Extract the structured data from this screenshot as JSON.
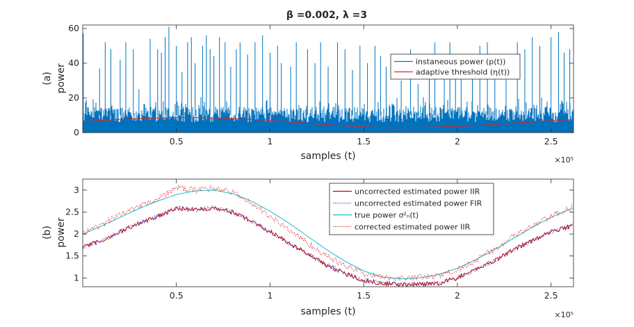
{
  "figure": {
    "title": "β =0.002, λ =3"
  },
  "chart_data": [
    {
      "panel": "(a)",
      "type": "line",
      "xlabel": "samples (t)",
      "ylabel": "power",
      "panel_label": "(a)",
      "x_exponent_label": "×10⁵",
      "xlim": [
        0,
        2.62
      ],
      "ylim": [
        0,
        62
      ],
      "x_unit_note": "x values in units of 10^5 samples",
      "xticks": [
        0.5,
        1,
        1.5,
        2,
        2.5
      ],
      "xtick_labels": [
        "0.5",
        "1",
        "1.5",
        "2",
        "2.5"
      ],
      "yticks": [
        0,
        20,
        40,
        60
      ],
      "ytick_labels": [
        "0",
        "20",
        "40",
        "60"
      ],
      "legend_position": "top-right",
      "series": [
        {
          "name": "instaneous power (p(t))",
          "color": "#0072BD",
          "style": "solid",
          "kind": "noise-with-spikes",
          "spike_x": [
            0.003,
            0.09,
            0.12,
            0.15,
            0.2,
            0.23,
            0.27,
            0.3,
            0.36,
            0.4,
            0.42,
            0.44,
            0.46,
            0.5,
            0.53,
            0.56,
            0.58,
            0.6,
            0.64,
            0.66,
            0.68,
            0.7,
            0.73,
            0.76,
            0.79,
            0.82,
            0.84,
            0.88,
            0.92,
            0.96,
            1.0,
            1.04,
            1.06,
            1.11,
            1.14,
            1.2,
            1.24,
            1.27,
            1.31,
            1.36,
            1.4,
            1.44,
            1.48,
            1.52,
            1.56,
            1.59,
            1.62,
            1.7,
            1.75,
            1.79,
            1.85,
            1.88,
            1.93,
            1.96,
            1.99,
            2.02,
            2.08,
            2.12,
            2.16,
            2.2,
            2.26,
            2.32,
            2.36,
            2.4,
            2.44,
            2.5,
            2.54,
            2.57,
            2.6
          ],
          "spike_y": [
            57,
            37,
            52,
            48,
            42,
            52,
            48,
            25,
            54,
            48,
            46,
            55,
            61,
            50,
            35,
            52,
            55,
            40,
            50,
            56,
            48,
            44,
            55,
            52,
            38,
            48,
            52,
            45,
            52,
            56,
            46,
            50,
            40,
            38,
            52,
            48,
            40,
            52,
            38,
            52,
            48,
            36,
            50,
            40,
            50,
            44,
            38,
            30,
            48,
            28,
            42,
            52,
            44,
            52,
            38,
            40,
            45,
            50,
            52,
            44,
            38,
            52,
            48,
            55,
            50,
            55,
            58,
            46,
            48
          ]
        },
        {
          "name": "adaptive threshold (η(t))",
          "color": "#D62728",
          "style": "solid",
          "x": [
            0,
            0.1,
            0.2,
            0.3,
            0.4,
            0.5,
            0.6,
            0.7,
            0.8,
            0.9,
            1.0,
            1.1,
            1.2,
            1.3,
            1.4,
            1.5,
            1.6,
            1.7,
            1.8,
            1.9,
            2.0,
            2.1,
            2.2,
            2.3,
            2.4,
            2.5,
            2.62
          ],
          "y": [
            6.3,
            7.0,
            7.6,
            8.1,
            8.4,
            8.6,
            8.6,
            8.5,
            8.1,
            7.6,
            7.0,
            6.2,
            5.4,
            4.6,
            3.9,
            3.3,
            3.0,
            2.9,
            3.0,
            3.2,
            3.6,
            4.1,
            4.7,
            5.4,
            6.1,
            6.8,
            7.6
          ]
        }
      ]
    },
    {
      "panel": "(b)",
      "type": "line",
      "xlabel": "samples (t)",
      "ylabel": "power",
      "panel_label": "(b)",
      "x_exponent_label": "×10⁵",
      "xlim": [
        0,
        2.62
      ],
      "ylim": [
        0.8,
        3.25
      ],
      "x_unit_note": "x values in units of 10^5 samples",
      "xticks": [
        0.5,
        1,
        1.5,
        2,
        2.5
      ],
      "xtick_labels": [
        "0.5",
        "1",
        "1.5",
        "2",
        "2.5"
      ],
      "yticks": [
        1,
        1.5,
        2,
        2.5,
        3
      ],
      "ytick_labels": [
        "1",
        "1.5",
        "2",
        "2.5",
        "3"
      ],
      "legend_position": "top-right",
      "x": [
        0,
        0.1,
        0.2,
        0.3,
        0.4,
        0.5,
        0.6,
        0.7,
        0.8,
        0.9,
        1.0,
        1.1,
        1.2,
        1.3,
        1.4,
        1.5,
        1.6,
        1.7,
        1.8,
        1.9,
        2.0,
        2.1,
        2.2,
        2.3,
        2.4,
        2.5,
        2.62
      ],
      "series": [
        {
          "name": "uncorrected estimated power IIR",
          "color": "#C00000",
          "style": "solid",
          "y": [
            1.7,
            1.85,
            2.05,
            2.25,
            2.4,
            2.6,
            2.55,
            2.6,
            2.5,
            2.3,
            2.05,
            1.8,
            1.55,
            1.3,
            1.1,
            0.95,
            0.88,
            0.85,
            0.85,
            0.88,
            1.0,
            1.2,
            1.4,
            1.65,
            1.85,
            2.05,
            2.2
          ]
        },
        {
          "name": "uncorrected estimated power FIR",
          "color": "#3A3AD0",
          "style": "dotted",
          "y": [
            1.7,
            1.85,
            2.05,
            2.25,
            2.4,
            2.6,
            2.55,
            2.6,
            2.5,
            2.3,
            2.05,
            1.8,
            1.55,
            1.3,
            1.1,
            0.95,
            0.88,
            0.85,
            0.85,
            0.88,
            1.0,
            1.2,
            1.4,
            1.65,
            1.85,
            2.05,
            2.2
          ]
        },
        {
          "name": "true power σ²ₙ(t)",
          "color": "#17BECF",
          "style": "solid",
          "y": [
            2.0,
            2.18,
            2.38,
            2.58,
            2.75,
            2.9,
            2.98,
            3.0,
            2.92,
            2.75,
            2.52,
            2.25,
            1.95,
            1.65,
            1.38,
            1.16,
            1.02,
            0.98,
            1.0,
            1.08,
            1.22,
            1.42,
            1.65,
            1.9,
            2.15,
            2.38,
            2.6
          ]
        },
        {
          "name": "corrected estimated power IIR",
          "color": "#E8202A",
          "style": "dotted",
          "y": [
            2.0,
            2.2,
            2.45,
            2.65,
            2.8,
            3.05,
            3.0,
            3.05,
            2.95,
            2.7,
            2.4,
            2.1,
            1.8,
            1.5,
            1.28,
            1.1,
            1.0,
            1.0,
            1.02,
            1.04,
            1.18,
            1.42,
            1.65,
            1.95,
            2.18,
            2.4,
            2.62
          ]
        }
      ]
    }
  ]
}
